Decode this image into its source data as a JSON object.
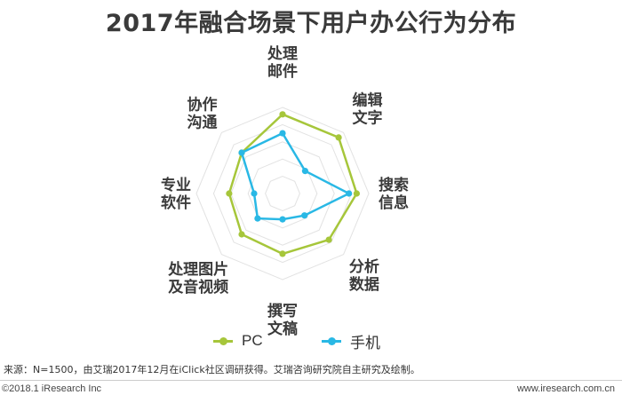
{
  "title": "2017年融合场景下用户办公行为分布",
  "chart_data": {
    "type": "radar",
    "axes": [
      "处理邮件",
      "编辑文字",
      "搜索信息",
      "分析数据",
      "撰写文稿",
      "处理图片及音视频",
      "专业软件",
      "协作沟通"
    ],
    "axis_label_lines": [
      [
        "处理",
        "邮件"
      ],
      [
        "编辑",
        "文字"
      ],
      [
        "搜索",
        "信息"
      ],
      [
        "分析",
        "数据"
      ],
      [
        "撰写",
        "文稿"
      ],
      [
        "处理图片",
        "及音视频"
      ],
      [
        "专业",
        "软件"
      ],
      [
        "协作",
        "沟通"
      ]
    ],
    "rmax": 1.0,
    "grid_levels": 5,
    "series": [
      {
        "name": "PC",
        "color": "#a6c63a",
        "values": [
          0.92,
          0.92,
          0.86,
          0.76,
          0.7,
          0.67,
          0.62,
          0.67
        ]
      },
      {
        "name": "手机",
        "color": "#29b8e5",
        "values": [
          0.7,
          0.37,
          0.77,
          0.36,
          0.3,
          0.41,
          0.33,
          0.67
        ]
      }
    ],
    "legend_position": "bottom"
  },
  "legend": [
    {
      "label": "PC",
      "color": "#a6c63a"
    },
    {
      "label": "手机",
      "color": "#29b8e5"
    }
  ],
  "footer": {
    "source": "来源：N=1500，由艾瑞2017年12月在iClick社区调研获得。艾瑞咨询研究院自主研究及绘制。",
    "copyright": "©2018.1 iResearch Inc",
    "website": "www.iresearch.com.cn"
  }
}
